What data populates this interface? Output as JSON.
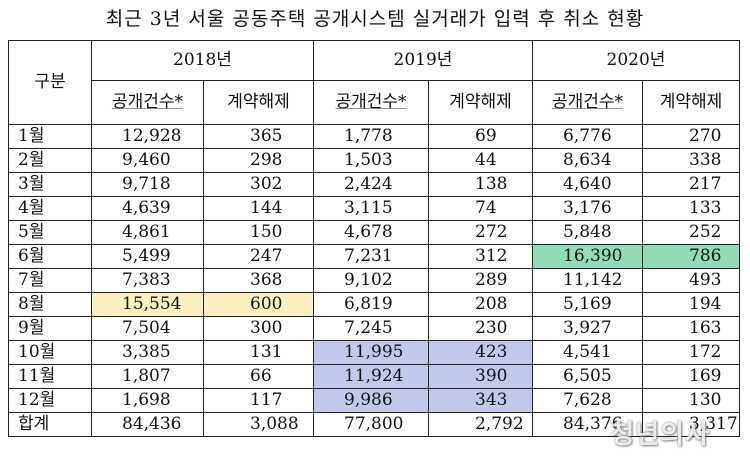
{
  "title": "최근 3년 서울 공동주택 공개시스템 실거래가 입력 후 취소 현황",
  "header": {
    "category": "구분",
    "years": [
      "2018년",
      "2019년",
      "2020년"
    ],
    "cols": [
      "공개건수*",
      "계약해제"
    ]
  },
  "rows": [
    {
      "label": "1월",
      "v": [
        "12,928",
        "365",
        "1,778",
        "69",
        "6,776",
        "270"
      ]
    },
    {
      "label": "2월",
      "v": [
        "9,460",
        "298",
        "1,503",
        "44",
        "8,634",
        "338"
      ]
    },
    {
      "label": "3월",
      "v": [
        "9,718",
        "302",
        "2,424",
        "138",
        "4,640",
        "217"
      ]
    },
    {
      "label": "4월",
      "v": [
        "4,639",
        "144",
        "3,115",
        "74",
        "3,176",
        "133"
      ]
    },
    {
      "label": "5월",
      "v": [
        "4,861",
        "150",
        "4,678",
        "272",
        "5,848",
        "252"
      ]
    },
    {
      "label": "6월",
      "v": [
        "5,499",
        "247",
        "7,231",
        "312",
        "16,390",
        "786"
      ]
    },
    {
      "label": "7월",
      "v": [
        "7,383",
        "368",
        "9,102",
        "289",
        "11,142",
        "493"
      ]
    },
    {
      "label": "8월",
      "v": [
        "15,554",
        "600",
        "6,819",
        "208",
        "5,169",
        "194"
      ]
    },
    {
      "label": "9월",
      "v": [
        "7,504",
        "300",
        "7,245",
        "230",
        "3,927",
        "163"
      ]
    },
    {
      "label": "10월",
      "v": [
        "3,385",
        "131",
        "11,995",
        "423",
        "4,541",
        "172"
      ]
    },
    {
      "label": "11월",
      "v": [
        "1,807",
        "66",
        "11,924",
        "390",
        "6,505",
        "169"
      ]
    },
    {
      "label": "12월",
      "v": [
        "1,698",
        "117",
        "9,986",
        "343",
        "7,628",
        "130"
      ]
    },
    {
      "label": "합계",
      "v": [
        "84,436",
        "3,088",
        "77,800",
        "2,792",
        "84,376",
        "3,317"
      ]
    }
  ],
  "highlights": {
    "yellow": "#fbf0c0",
    "green": "#8fdcb6",
    "blue": "#c2c8ec"
  },
  "watermark": "청년의사"
}
